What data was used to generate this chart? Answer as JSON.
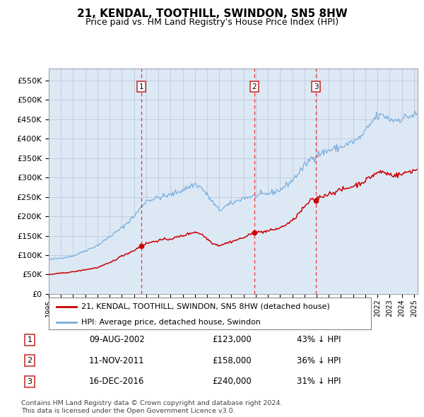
{
  "title": "21, KENDAL, TOOTHILL, SWINDON, SN5 8HW",
  "subtitle": "Price paid vs. HM Land Registry's House Price Index (HPI)",
  "legend_red": "21, KENDAL, TOOTHILL, SWINDON, SN5 8HW (detached house)",
  "legend_blue": "HPI: Average price, detached house, Swindon",
  "transactions": [
    {
      "num": 1,
      "date": "09-AUG-2002",
      "date_x": 2002.6,
      "price": 123000,
      "label": "£123,000",
      "pct": "43% ↓ HPI"
    },
    {
      "num": 2,
      "date": "11-NOV-2011",
      "date_x": 2011.87,
      "price": 158000,
      "label": "£158,000",
      "pct": "36% ↓ HPI"
    },
    {
      "num": 3,
      "date": "16-DEC-2016",
      "date_x": 2016.96,
      "price": 240000,
      "label": "£240,000",
      "pct": "31% ↓ HPI"
    }
  ],
  "ylim": [
    0,
    580000
  ],
  "yticks": [
    0,
    50000,
    100000,
    150000,
    200000,
    250000,
    300000,
    350000,
    400000,
    450000,
    500000,
    550000
  ],
  "xlim_start": 1995.0,
  "xlim_end": 2025.3,
  "plot_bg": "#dce9f5",
  "red_line_color": "#cc0000",
  "blue_line_color": "#7aaddb",
  "vline_color": "#ee3333",
  "marker_color": "#cc0000",
  "grid_color": "#b0b8cc",
  "footer": "Contains HM Land Registry data © Crown copyright and database right 2024.\nThis data is licensed under the Open Government Licence v3.0."
}
